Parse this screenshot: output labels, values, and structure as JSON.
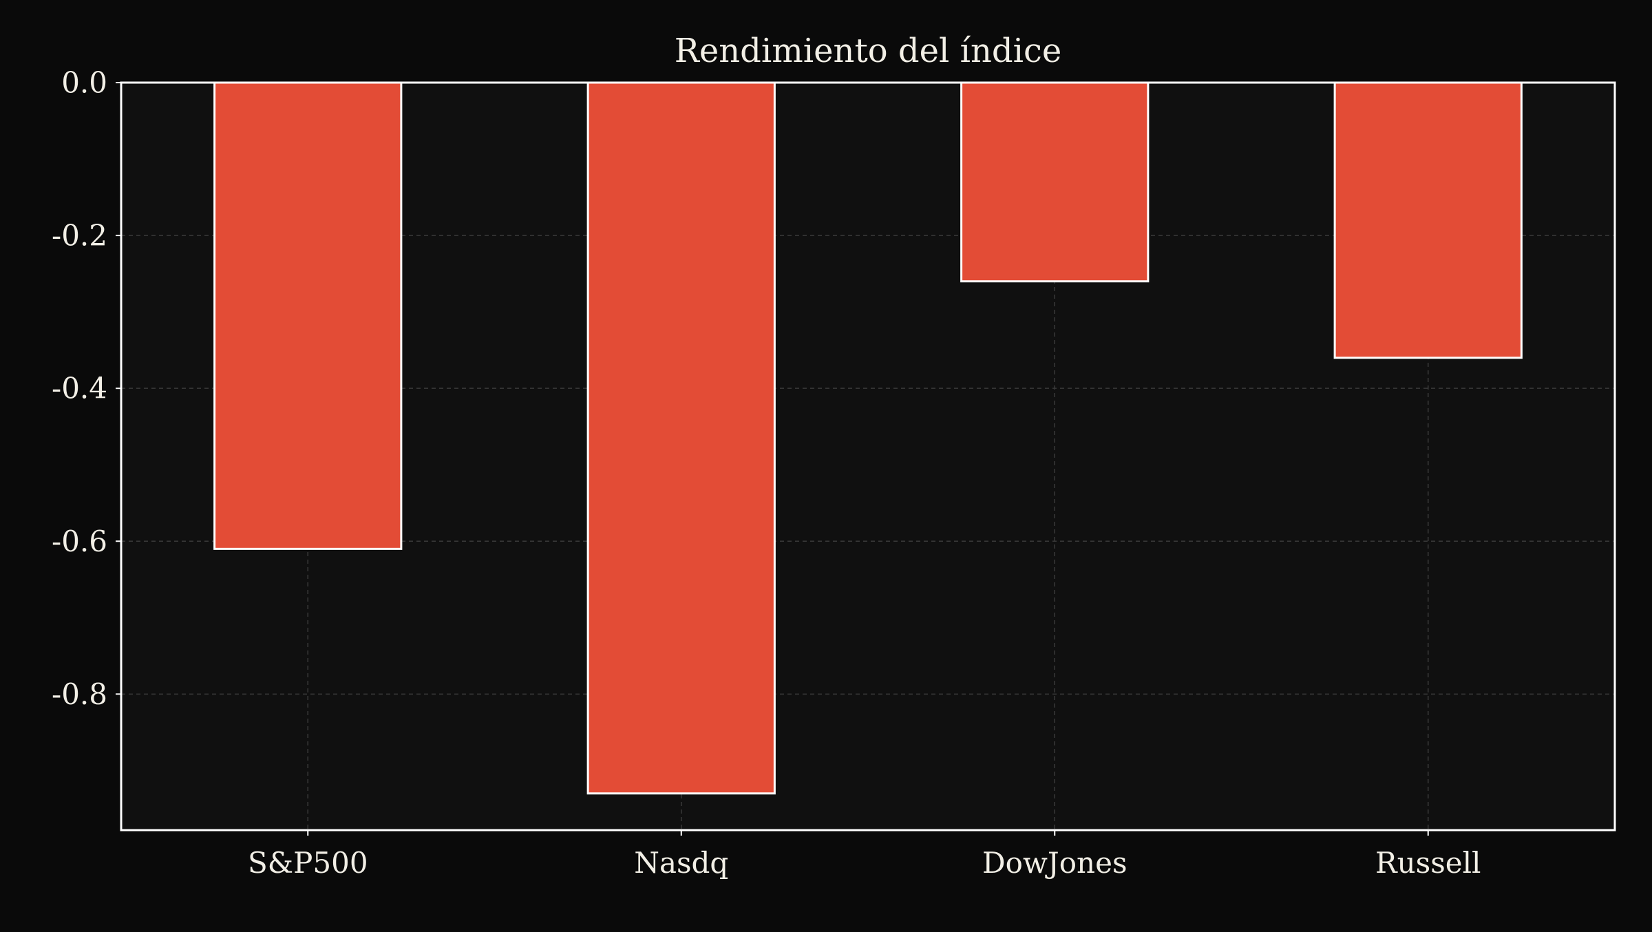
{
  "chart_data": {
    "type": "bar",
    "title": "Rendimiento del índice",
    "xlabel": "",
    "ylabel": "",
    "categories": [
      "S&P500",
      "Nasdq",
      "DowJones",
      "Russell"
    ],
    "values": [
      -0.61,
      -0.93,
      -0.26,
      -0.36
    ],
    "ylim": [
      -0.978,
      0.0
    ],
    "yticks": [
      0.0,
      -0.2,
      -0.4,
      -0.6,
      -0.8
    ],
    "ytick_labels": [
      "0.0",
      "-0.2",
      "-0.4",
      "-0.6",
      "-0.8"
    ],
    "grid": true,
    "legend": "none",
    "colors": {
      "background": "#0a0a0a",
      "plot_background": "#101010",
      "bar_fill": "#e34c36",
      "bar_edge": "#ffffff",
      "axis": "#ffffff",
      "grid": "#3a3a3a",
      "text": "#f2efe6"
    }
  }
}
